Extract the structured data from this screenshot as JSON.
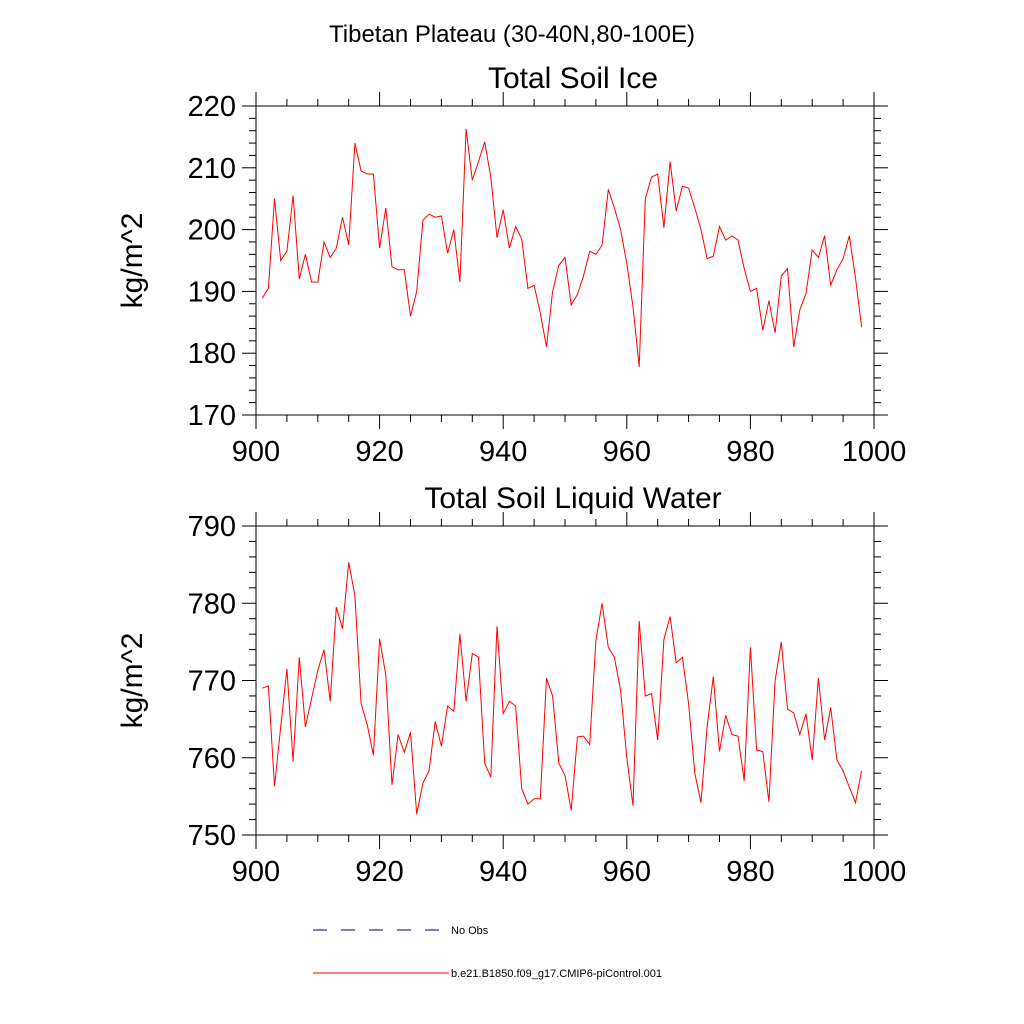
{
  "suptitle": "Tibetan Plateau (30-40N,80-100E)",
  "colors": {
    "series": "#ff0000",
    "obs": "#000080",
    "axis": "#000000"
  },
  "legend": {
    "entries": [
      {
        "label": "No Obs",
        "style": "dashed",
        "color": "#000080"
      },
      {
        "label": "b.e21.B1850.f09_g17.CMIP6-piControl.001",
        "style": "solid",
        "color": "#ff0000"
      }
    ]
  },
  "chart_data": [
    {
      "type": "line",
      "title": "Total Soil Ice",
      "xlabel": "",
      "ylabel": "kg/m^2",
      "xlim": [
        900,
        1000
      ],
      "ylim": [
        170,
        220
      ],
      "xticks": [
        900,
        920,
        940,
        960,
        980,
        1000
      ],
      "yticks": [
        170,
        180,
        190,
        200,
        210,
        220
      ],
      "grid": false,
      "series": [
        {
          "color": "#ff0000",
          "x": [
            901,
            902,
            903,
            904,
            905,
            906,
            907,
            908,
            909,
            910,
            911,
            912,
            913,
            914,
            915,
            916,
            917,
            918,
            919,
            920,
            921,
            922,
            923,
            924,
            925,
            926,
            927,
            928,
            929,
            930,
            931,
            932,
            933,
            934,
            935,
            936,
            937,
            938,
            939,
            940,
            941,
            942,
            943,
            944,
            945,
            946,
            947,
            948,
            949,
            950,
            951,
            952,
            953,
            954,
            955,
            956,
            957,
            958,
            959,
            960,
            961,
            962,
            963,
            964,
            965,
            966,
            967,
            968,
            969,
            970,
            971,
            972,
            973,
            974,
            975,
            976,
            977,
            978,
            979,
            980,
            981,
            982,
            983,
            984,
            985,
            986,
            987,
            988,
            989,
            990,
            991,
            992,
            993,
            994,
            995,
            996,
            997,
            998
          ],
          "y": [
            188.9,
            190.5,
            205.0,
            195.0,
            196.5,
            205.5,
            192.0,
            196.0,
            191.5,
            191.5,
            198.0,
            195.5,
            197.0,
            202.0,
            197.5,
            214.0,
            209.5,
            209.0,
            209.0,
            197.0,
            203.5,
            194.0,
            193.5,
            193.5,
            186.0,
            190.0,
            201.5,
            202.5,
            202.0,
            202.2,
            196.2,
            200.0,
            191.5,
            216.3,
            208.0,
            211.0,
            214.2,
            208.5,
            198.7,
            203.2,
            197.0,
            200.5,
            198.5,
            190.5,
            191.0,
            186.5,
            181.0,
            190.0,
            194.2,
            195.5,
            187.8,
            189.5,
            192.5,
            196.5,
            196.0,
            197.5,
            206.5,
            203.5,
            200.0,
            194.5,
            187.5,
            177.8,
            205.0,
            208.5,
            209.0,
            200.3,
            211.0,
            203.0,
            207.0,
            206.7,
            203.5,
            200.0,
            195.3,
            195.7,
            200.5,
            198.3,
            199.0,
            198.3,
            193.7,
            190.0,
            190.5,
            183.7,
            188.5,
            183.3,
            192.5,
            193.7,
            181.0,
            187.0,
            189.7,
            196.7,
            195.5,
            199.0,
            191.0,
            193.5,
            195.3,
            199.0,
            192.2,
            184.2
          ]
        }
      ]
    },
    {
      "type": "line",
      "title": "Total Soil Liquid Water",
      "xlabel": "",
      "ylabel": "kg/m^2",
      "xlim": [
        900,
        1000
      ],
      "ylim": [
        750,
        790
      ],
      "xticks": [
        900,
        920,
        940,
        960,
        980,
        1000
      ],
      "yticks": [
        750,
        760,
        770,
        780,
        790
      ],
      "grid": false,
      "series": [
        {
          "color": "#ff0000",
          "x": [
            901,
            902,
            903,
            904,
            905,
            906,
            907,
            908,
            909,
            910,
            911,
            912,
            913,
            914,
            915,
            916,
            917,
            918,
            919,
            920,
            921,
            922,
            923,
            924,
            925,
            926,
            927,
            928,
            929,
            930,
            931,
            932,
            933,
            934,
            935,
            936,
            937,
            938,
            939,
            940,
            941,
            942,
            943,
            944,
            945,
            946,
            947,
            948,
            949,
            950,
            951,
            952,
            953,
            954,
            955,
            956,
            957,
            958,
            959,
            960,
            961,
            962,
            963,
            964,
            965,
            966,
            967,
            968,
            969,
            970,
            971,
            972,
            973,
            974,
            975,
            976,
            977,
            978,
            979,
            980,
            981,
            982,
            983,
            984,
            985,
            986,
            987,
            988,
            989,
            990,
            991,
            992,
            993,
            994,
            995,
            996,
            997,
            998
          ],
          "y": [
            769.0,
            769.3,
            756.3,
            764.0,
            771.5,
            759.5,
            773.0,
            764.0,
            767.7,
            771.3,
            774.0,
            767.3,
            779.5,
            776.7,
            785.3,
            781.0,
            767.0,
            764.3,
            760.3,
            775.4,
            770.7,
            756.5,
            763.0,
            760.7,
            763.3,
            752.7,
            756.7,
            758.3,
            764.7,
            761.5,
            766.7,
            766.0,
            776.0,
            767.3,
            773.5,
            773.0,
            759.3,
            757.5,
            777.0,
            765.7,
            767.3,
            766.7,
            756.0,
            754.0,
            754.7,
            754.7,
            770.3,
            768.0,
            759.3,
            757.7,
            753.2,
            762.7,
            762.8,
            761.7,
            775.2,
            780.0,
            774.3,
            773.0,
            768.7,
            760.0,
            753.8,
            777.7,
            768.0,
            768.3,
            762.3,
            775.3,
            778.3,
            772.3,
            773.0,
            767.0,
            758.0,
            754.2,
            764.0,
            770.5,
            760.8,
            765.5,
            763.0,
            762.8,
            757.0,
            774.3,
            761.0,
            760.8,
            754.3,
            770.0,
            775.0,
            766.3,
            765.8,
            763.0,
            765.7,
            759.7,
            770.3,
            762.3,
            766.5,
            759.7,
            758.3,
            756.2,
            754.2,
            758.3
          ]
        }
      ]
    }
  ]
}
